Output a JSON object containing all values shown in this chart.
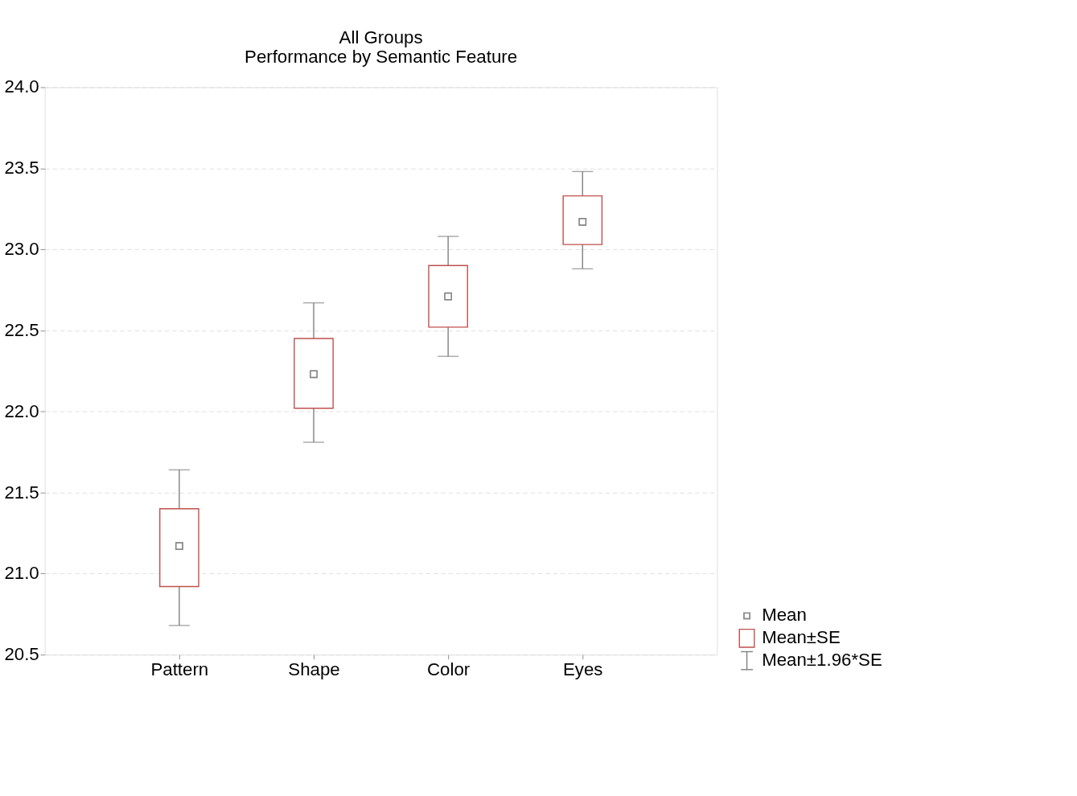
{
  "chart_data": {
    "type": "scatter",
    "title": [
      "All Groups",
      "Performance by Semantic Feature"
    ],
    "categories": [
      "Pattern",
      "Shape",
      "Color",
      "Eyes"
    ],
    "series": [
      {
        "name": "Mean",
        "marker": "square",
        "color": "#606060",
        "values": [
          21.17,
          22.23,
          22.71,
          23.17
        ]
      },
      {
        "name": "Mean±SE",
        "type": "bar",
        "color": "#c0504d",
        "base": [
          20.92,
          22.02,
          22.52,
          23.03
        ],
        "values": [
          0.48,
          0.43,
          0.38,
          0.3
        ]
      },
      {
        "name": "Mean±1.96*SE",
        "marker": "square",
        "color": "#808080",
        "values": [
          21.17,
          22.23,
          22.71,
          23.17
        ],
        "errors": [
          [
            20.68,
            21.64
          ],
          [
            21.81,
            22.67
          ],
          [
            22.34,
            23.08
          ],
          [
            22.88,
            23.48
          ]
        ]
      }
    ],
    "ylim": [
      20.5,
      24.0
    ],
    "yticks": [
      20.5,
      {
        "value": 21,
        "label": "21.0"
      },
      21.5,
      {
        "value": 22,
        "label": "22.0"
      },
      22.5,
      {
        "value": 23,
        "label": "23.0"
      },
      23.5,
      {
        "value": 24,
        "label": "24.0"
      }
    ],
    "grid": "y",
    "legend": "bottom right"
  }
}
